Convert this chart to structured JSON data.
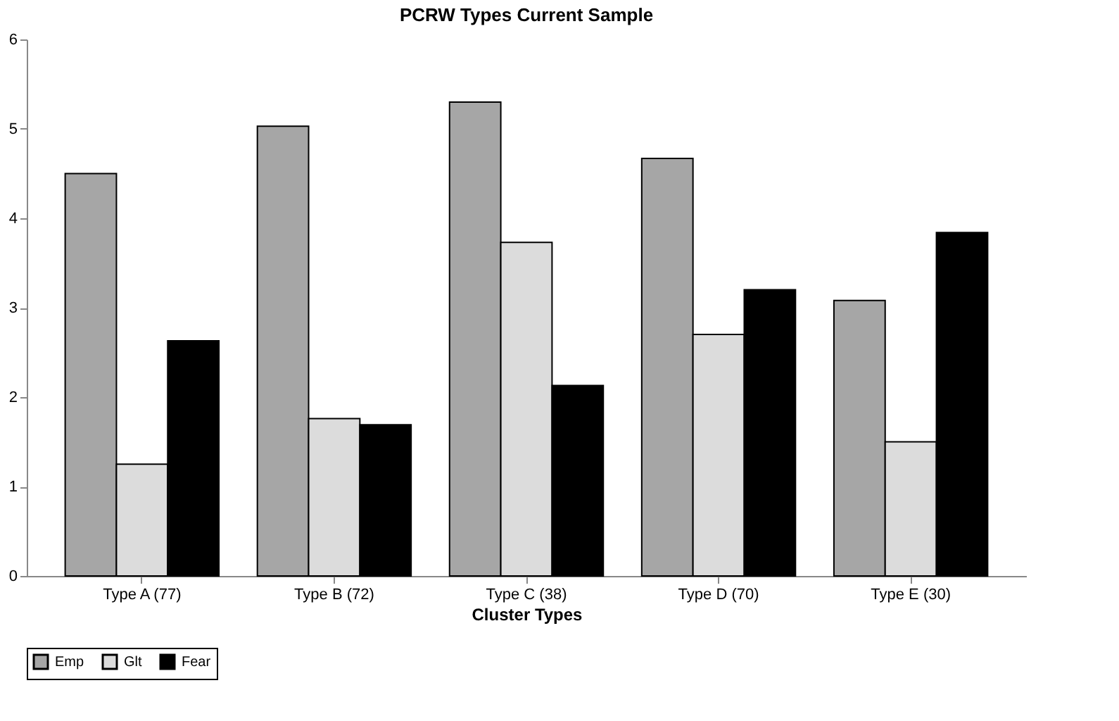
{
  "chart_data": {
    "type": "bar",
    "title": "PCRW Types Current Sample",
    "xlabel": "Cluster Types",
    "categories": [
      "Type A (77)",
      "Type B (72)",
      "Type C (38)",
      "Type D (70)",
      "Type E (30)"
    ],
    "series": [
      {
        "name": "Emp",
        "color": "#a6a6a6",
        "values": [
          4.5,
          5.03,
          5.3,
          4.67,
          3.08
        ]
      },
      {
        "name": "Glt",
        "color": "#dcdcdc",
        "values": [
          1.25,
          1.76,
          3.73,
          2.7,
          1.5
        ]
      },
      {
        "name": "Fear",
        "color": "#000000",
        "values": [
          2.63,
          1.69,
          2.13,
          3.2,
          3.84
        ]
      }
    ],
    "ylim": [
      0,
      6
    ],
    "yticks": [
      0,
      1,
      2,
      3,
      4,
      5,
      6
    ],
    "grid": false,
    "legend": "bottom"
  }
}
